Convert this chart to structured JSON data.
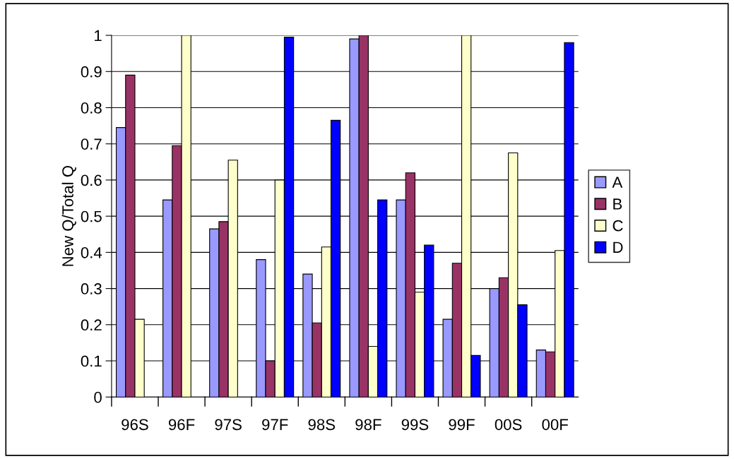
{
  "chart_data": {
    "type": "bar",
    "ylabel": "New Q/Total Q",
    "categories": [
      "96S",
      "96F",
      "97S",
      "97F",
      "98S",
      "98F",
      "99S",
      "99F",
      "00S",
      "00F"
    ],
    "series": [
      {
        "name": "A",
        "color": "#9999ff",
        "values": [
          0.745,
          0.545,
          0.465,
          0.38,
          0.34,
          0.99,
          0.545,
          0.215,
          0.3,
          0.13
        ]
      },
      {
        "name": "B",
        "color": "#993366",
        "values": [
          0.89,
          0.695,
          0.485,
          0.1,
          0.205,
          1.0,
          0.62,
          0.37,
          0.33,
          0.125
        ]
      },
      {
        "name": "C",
        "color": "#ffffcc",
        "values": [
          0.215,
          1.0,
          0.655,
          0.6,
          0.415,
          0.14,
          0.29,
          1.0,
          0.675,
          0.405
        ]
      },
      {
        "name": "D",
        "color": "#0000ff",
        "values": [
          null,
          null,
          null,
          0.995,
          0.765,
          0.545,
          0.42,
          0.115,
          0.255,
          0.98
        ]
      }
    ],
    "ylim": [
      0,
      1
    ],
    "yticks": [
      0,
      0.1,
      0.2,
      0.3,
      0.4,
      0.5,
      0.6,
      0.7,
      0.8,
      0.9,
      1
    ],
    "grid": "y",
    "legend": "right"
  }
}
